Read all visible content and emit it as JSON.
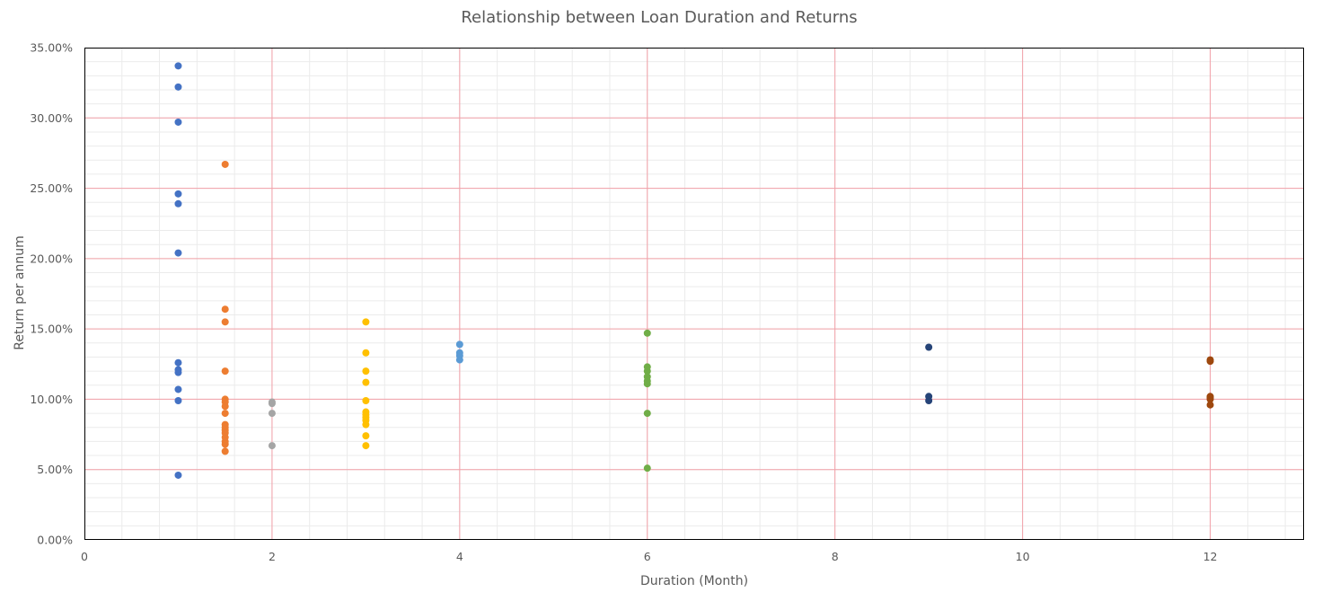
{
  "chart_data": {
    "type": "scatter",
    "title": "Relationship between Loan Duration and Returns",
    "xlabel": "Duration (Month)",
    "ylabel": "Return per annum",
    "xlim": [
      0,
      13
    ],
    "ylim": [
      0,
      0.35
    ],
    "x_ticks": [
      0,
      2,
      4,
      6,
      8,
      10,
      12
    ],
    "x_tick_labels": [
      "0",
      "2",
      "4",
      "6",
      "8",
      "10",
      "12"
    ],
    "y_ticks": [
      0,
      0.05,
      0.1,
      0.15,
      0.2,
      0.25,
      0.3,
      0.35
    ],
    "y_tick_labels": [
      "0.00%",
      "5.00%",
      "10.00%",
      "15.00%",
      "20.00%",
      "25.00%",
      "30.00%",
      "35.00%"
    ],
    "grid": true,
    "minor_grid": true,
    "major_grid_color": "#f2a0a8",
    "minor_grid_color": "#ebebeb",
    "legend": "none",
    "series": [
      {
        "color": "#4472c4",
        "points": [
          [
            1,
            0.337
          ],
          [
            1,
            0.322
          ],
          [
            1,
            0.297
          ],
          [
            1,
            0.246
          ],
          [
            1,
            0.239
          ],
          [
            1,
            0.204
          ],
          [
            1,
            0.126
          ],
          [
            1,
            0.121
          ],
          [
            1,
            0.119
          ],
          [
            1,
            0.107
          ],
          [
            1,
            0.099
          ],
          [
            1,
            0.046
          ]
        ]
      },
      {
        "color": "#ed7d31",
        "points": [
          [
            1.5,
            0.267
          ],
          [
            1.5,
            0.164
          ],
          [
            1.5,
            0.155
          ],
          [
            1.5,
            0.12
          ],
          [
            1.5,
            0.1
          ],
          [
            1.5,
            0.098
          ],
          [
            1.5,
            0.095
          ],
          [
            1.5,
            0.09
          ],
          [
            1.5,
            0.082
          ],
          [
            1.5,
            0.08
          ],
          [
            1.5,
            0.078
          ],
          [
            1.5,
            0.076
          ],
          [
            1.5,
            0.073
          ],
          [
            1.5,
            0.07
          ],
          [
            1.5,
            0.068
          ],
          [
            1.5,
            0.063
          ]
        ]
      },
      {
        "color": "#a5a5a5",
        "points": [
          [
            2,
            0.098
          ],
          [
            2,
            0.097
          ],
          [
            2,
            0.09
          ],
          [
            2,
            0.067
          ]
        ]
      },
      {
        "color": "#ffc000",
        "points": [
          [
            3,
            0.155
          ],
          [
            3,
            0.133
          ],
          [
            3,
            0.12
          ],
          [
            3,
            0.112
          ],
          [
            3,
            0.099
          ],
          [
            3,
            0.091
          ],
          [
            3,
            0.089
          ],
          [
            3,
            0.087
          ],
          [
            3,
            0.085
          ],
          [
            3,
            0.082
          ],
          [
            3,
            0.074
          ],
          [
            3,
            0.067
          ]
        ]
      },
      {
        "color": "#5b9bd5",
        "points": [
          [
            4,
            0.139
          ],
          [
            4,
            0.133
          ],
          [
            4,
            0.131
          ],
          [
            4,
            0.128
          ]
        ]
      },
      {
        "color": "#70ad47",
        "points": [
          [
            6,
            0.147
          ],
          [
            6,
            0.123
          ],
          [
            6,
            0.12
          ],
          [
            6,
            0.116
          ],
          [
            6,
            0.113
          ],
          [
            6,
            0.111
          ],
          [
            6,
            0.09
          ],
          [
            6,
            0.051
          ]
        ]
      },
      {
        "color": "#264478",
        "points": [
          [
            9,
            0.137
          ],
          [
            9,
            0.102
          ],
          [
            9,
            0.099
          ]
        ]
      },
      {
        "color": "#9e480e",
        "points": [
          [
            12,
            0.128
          ],
          [
            12,
            0.127
          ],
          [
            12,
            0.102
          ],
          [
            12,
            0.101
          ],
          [
            12,
            0.1
          ],
          [
            12,
            0.096
          ]
        ]
      }
    ]
  }
}
